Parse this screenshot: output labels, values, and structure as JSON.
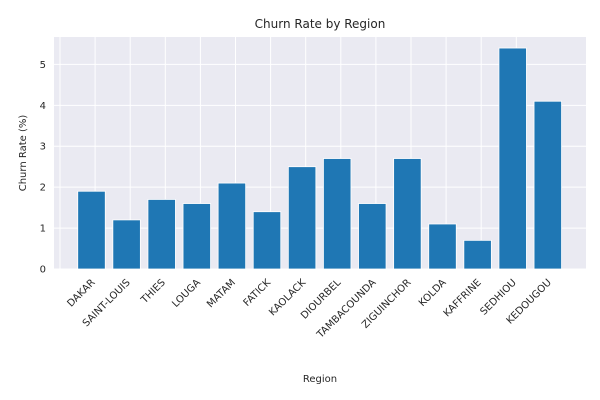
{
  "chart_data": {
    "type": "bar",
    "title": "Churn Rate by Region",
    "xlabel": "Region",
    "ylabel": "Churn Rate (%)",
    "categories": [
      "DAKAR",
      "SAINT-LOUIS",
      "THIES",
      "LOUGA",
      "MATAM",
      "FATICK",
      "KAOLACK",
      "DIOURBEL",
      "TAMBACOUNDA",
      "ZIGUINCHOR",
      "KOLDA",
      "KAFFRINE",
      "SEDHIOU",
      "KEDOUGOU"
    ],
    "values": [
      1.9,
      1.2,
      1.7,
      1.6,
      2.1,
      1.4,
      2.5,
      2.7,
      1.6,
      2.7,
      1.1,
      0.7,
      5.4,
      4.1
    ],
    "yticks": [
      0,
      1,
      2,
      3,
      4,
      5
    ],
    "ylim": [
      0,
      5.67
    ],
    "grid": true,
    "colors": {
      "bar": "#1f77b4",
      "plot_bg": "#eaeaf2",
      "grid": "#ffffff",
      "text": "#262626"
    }
  }
}
